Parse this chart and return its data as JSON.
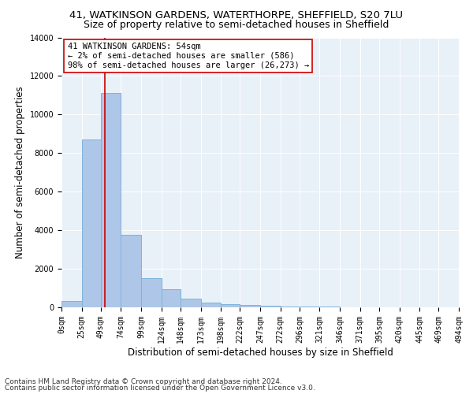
{
  "title": "41, WATKINSON GARDENS, WATERTHORPE, SHEFFIELD, S20 7LU",
  "subtitle": "Size of property relative to semi-detached houses in Sheffield",
  "xlabel": "Distribution of semi-detached houses by size in Sheffield",
  "ylabel": "Number of semi-detached properties",
  "footnote1": "Contains HM Land Registry data © Crown copyright and database right 2024.",
  "footnote2": "Contains public sector information licensed under the Open Government Licence v3.0.",
  "property_size": 54,
  "annotation_line1": "41 WATKINSON GARDENS: 54sqm",
  "annotation_line2": "← 2% of semi-detached houses are smaller (586)",
  "annotation_line3": "98% of semi-detached houses are larger (26,273) →",
  "bar_color": "#aec6e8",
  "bar_edge_color": "#7fb3d9",
  "line_color": "#cc0000",
  "annotation_box_color": "#ffffff",
  "annotation_box_edge": "#cc0000",
  "background_color": "#e8f0f8",
  "bin_edges": [
    0,
    25,
    49,
    74,
    99,
    124,
    148,
    173,
    198,
    222,
    247,
    272,
    296,
    321,
    346,
    371,
    395,
    420,
    445,
    469,
    494
  ],
  "bin_counts": [
    310,
    8700,
    11100,
    3750,
    1520,
    950,
    430,
    240,
    160,
    110,
    80,
    55,
    40,
    30,
    20,
    15,
    12,
    10,
    8,
    6
  ],
  "ylim": [
    0,
    14000
  ],
  "yticks": [
    0,
    2000,
    4000,
    6000,
    8000,
    10000,
    12000,
    14000
  ],
  "xlim": [
    0,
    494
  ],
  "title_fontsize": 9.5,
  "subtitle_fontsize": 9,
  "axis_label_fontsize": 8.5,
  "tick_fontsize": 7,
  "annotation_fontsize": 7.5,
  "footnote_fontsize": 6.5
}
